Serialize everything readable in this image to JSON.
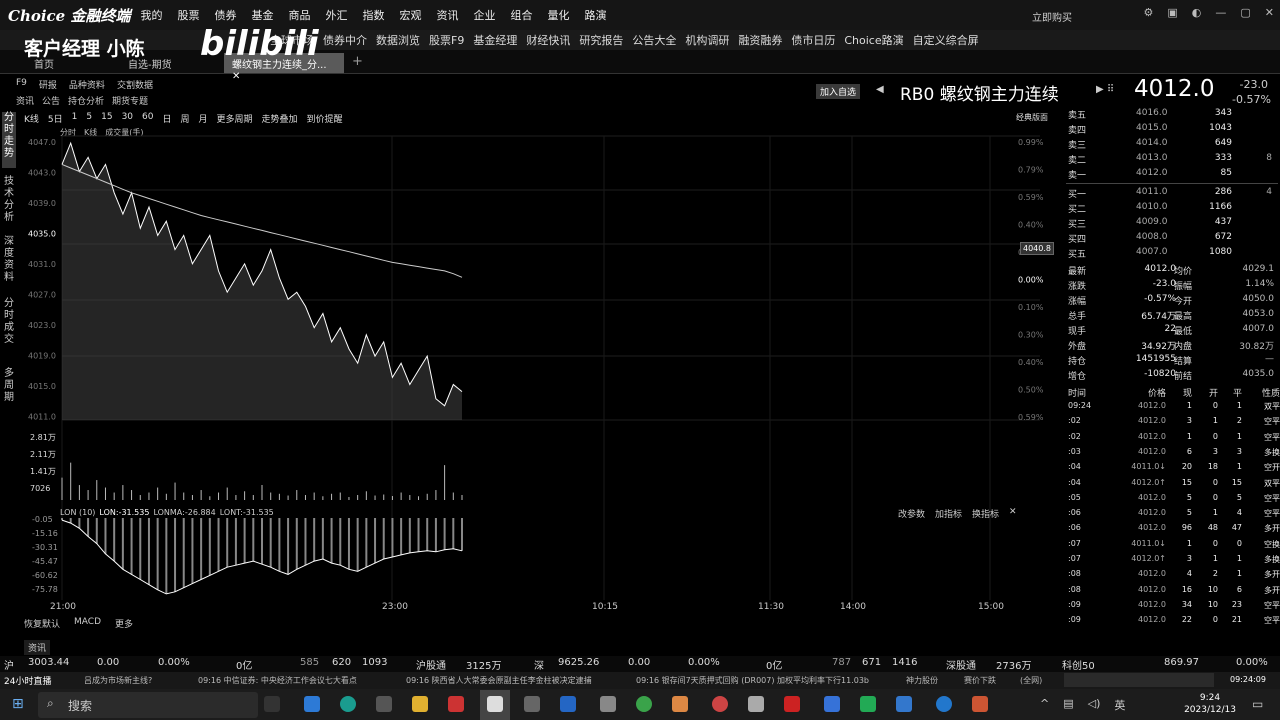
{
  "app": {
    "logo": "Choice 金融终端",
    "menu": [
      "我的",
      "股票",
      "债券",
      "基金",
      "商品",
      "外汇",
      "指数",
      "宏观",
      "资讯",
      "企业",
      "组合",
      "量化",
      "路演"
    ],
    "user_label": "立即购买"
  },
  "toolbar": [
    "全球市场",
    "债券中介",
    "数据浏览",
    "股票F9",
    "基金经理",
    "财经快讯",
    "研究报告",
    "公告大全",
    "机构调研",
    "融资融券",
    "债市日历",
    "Choice路演",
    "自定义综合屏"
  ],
  "tabs": [
    "首页",
    "自选-期货",
    "螺纹钢主力连续_分..."
  ],
  "watermark": {
    "text": "客户经理 小陈",
    "bili": "bilibili"
  },
  "left_nav": {
    "row1": [
      "F9",
      "研报",
      "品种资料",
      "交割数据"
    ],
    "row2": [
      "资讯",
      "公告",
      "持仓分析",
      "期货专题"
    ],
    "side": [
      "分时走势",
      "技术分析",
      "深度资料",
      "分时成交",
      "多周期"
    ]
  },
  "chart_controls": {
    "periods": [
      "K线",
      "5日",
      "1",
      "5",
      "15",
      "30",
      "60",
      "日",
      "周",
      "月",
      "更多周期",
      "走势叠加",
      "到价提醒"
    ],
    "sub": [
      "分时",
      "K线",
      "成交量(手)"
    ],
    "right_label": "经典版面",
    "current_tag": "4040.8"
  },
  "header": {
    "add_watch": "加入自选",
    "symbol": "RB0 螺纹钢主力连续",
    "price": "4012.0",
    "change": "-23.0",
    "change_pct": "-0.57%"
  },
  "order_book": {
    "asks": [
      {
        "label": "卖五",
        "price": "4016.0",
        "vol": "343",
        "extra": ""
      },
      {
        "label": "卖四",
        "price": "4015.0",
        "vol": "1043",
        "extra": ""
      },
      {
        "label": "卖三",
        "price": "4014.0",
        "vol": "649",
        "extra": ""
      },
      {
        "label": "卖二",
        "price": "4013.0",
        "vol": "333",
        "extra": "8"
      },
      {
        "label": "卖一",
        "price": "4012.0",
        "vol": "85",
        "extra": ""
      }
    ],
    "bids": [
      {
        "label": "买一",
        "price": "4011.0",
        "vol": "286",
        "extra": "4"
      },
      {
        "label": "买二",
        "price": "4010.0",
        "vol": "1166",
        "extra": ""
      },
      {
        "label": "买三",
        "price": "4009.0",
        "vol": "437",
        "extra": ""
      },
      {
        "label": "买四",
        "price": "4008.0",
        "vol": "672",
        "extra": ""
      },
      {
        "label": "买五",
        "price": "4007.0",
        "vol": "1080",
        "extra": ""
      }
    ]
  },
  "stats": [
    {
      "l1": "最新",
      "v1": "4012.0",
      "l2": "均价",
      "v2": "4029.1"
    },
    {
      "l1": "涨跌",
      "v1": "-23.0",
      "l2": "振幅",
      "v2": "1.14%"
    },
    {
      "l1": "涨幅",
      "v1": "-0.57%",
      "l2": "今开",
      "v2": "4050.0"
    },
    {
      "l1": "总手",
      "v1": "65.74万",
      "l2": "最高",
      "v2": "4053.0"
    },
    {
      "l1": "现手",
      "v1": "22",
      "l2": "最低",
      "v2": "4007.0"
    },
    {
      "l1": "外盘",
      "v1": "34.92万",
      "l2": "内盘",
      "v2": "30.82万"
    },
    {
      "l1": "持仓",
      "v1": "1451955",
      "l2": "结算",
      "v2": "—"
    },
    {
      "l1": "增仓",
      "v1": "-10820",
      "l2": "前结",
      "v2": "4035.0"
    }
  ],
  "trades_header": [
    "时间",
    "价格",
    "现",
    "开",
    "平",
    "性质"
  ],
  "trades": [
    [
      "09:24",
      "4012.0",
      "1",
      "0",
      "1",
      "双平"
    ],
    [
      ":02",
      "4012.0",
      "3",
      "1",
      "2",
      "空平"
    ],
    [
      ":02",
      "4012.0",
      "1",
      "0",
      "1",
      "空平"
    ],
    [
      ":03",
      "4012.0",
      "6",
      "3",
      "3",
      "多换"
    ],
    [
      ":04",
      "4011.0↓",
      "20",
      "18",
      "1",
      "空开"
    ],
    [
      ":04",
      "4012.0↑",
      "15",
      "0",
      "15",
      "双平"
    ],
    [
      ":05",
      "4012.0",
      "5",
      "0",
      "5",
      "空平"
    ],
    [
      ":06",
      "4012.0",
      "5",
      "1",
      "4",
      "空平"
    ],
    [
      ":06",
      "4012.0",
      "96",
      "48",
      "47",
      "多开"
    ],
    [
      ":07",
      "4011.0↓",
      "1",
      "0",
      "0",
      "空换"
    ],
    [
      ":07",
      "4012.0↑",
      "3",
      "1",
      "1",
      "多换"
    ],
    [
      ":08",
      "4012.0",
      "4",
      "2",
      "1",
      "多开"
    ],
    [
      ":08",
      "4012.0",
      "16",
      "10",
      "6",
      "多开"
    ],
    [
      ":09",
      "4012.0",
      "34",
      "10",
      "23",
      "空平"
    ],
    [
      ":09",
      "4012.0",
      "22",
      "0",
      "21",
      "空平"
    ]
  ],
  "chart_data": {
    "type": "line",
    "price_ticks": [
      "4047.0",
      "4043.0",
      "4039.0",
      "4035.0",
      "4031.0",
      "4027.0",
      "4023.0",
      "4019.0",
      "4015.0",
      "4011.0"
    ],
    "pct_ticks": [
      "0.99%",
      "0.79%",
      "0.59%",
      "0.40%",
      "0.20%",
      "0.00%",
      "0.10%",
      "0.30%",
      "0.40%",
      "0.50%",
      "0.59%"
    ],
    "ylim": [
      4009,
      4049
    ],
    "price": [
      4045,
      4048,
      4044,
      4046,
      4043,
      4045,
      4041,
      4038,
      4041,
      4036,
      4039,
      4035,
      4037,
      4033,
      4035,
      4031,
      4033,
      4035,
      4030,
      4027,
      4029,
      4031,
      4028,
      4030,
      4033,
      4029,
      4026,
      4027,
      4025,
      4022,
      4024,
      4020,
      4022,
      4019,
      4017,
      4021,
      4018,
      4020,
      4015,
      4017,
      4014,
      4016,
      4018,
      4012,
      4011,
      4014,
      4013
    ],
    "avg": [
      4045,
      4044.5,
      4044,
      4043.5,
      4043,
      4042.5,
      4042,
      4041.5,
      4041,
      4040.6,
      4040.2,
      4039.8,
      4039.4,
      4039,
      4038.6,
      4038.2,
      4037.8,
      4037.5,
      4037.2,
      4036.9,
      4036.6,
      4036.3,
      4036,
      4035.7,
      4035.4,
      4035.1,
      4034.8,
      4034.5,
      4034.2,
      4033.9,
      4033.6,
      4033.3,
      4033,
      4032.7,
      4032.4,
      4032.1,
      4031.8,
      4031.5,
      4031.2,
      4031,
      4030.8,
      4030.6,
      4030.4,
      4030.2,
      4030,
      4029.6,
      4029.1
    ],
    "vol_ticks": [
      "2.81万",
      "2.11万",
      "1.41万",
      "7026"
    ],
    "volume": [
      9000,
      15000,
      6000,
      4000,
      8000,
      5000,
      3000,
      6000,
      4000,
      2000,
      3000,
      5000,
      2500,
      7000,
      3000,
      2000,
      4000,
      1500,
      3000,
      5000,
      2000,
      3500,
      2000,
      6000,
      3000,
      2500,
      1800,
      4000,
      2000,
      3000,
      1500,
      2500,
      3000,
      1200,
      2000,
      3500,
      1800,
      2200,
      1600,
      3000,
      2000,
      1500,
      2500,
      4000,
      14000,
      3000,
      2000
    ],
    "indicator": {
      "name": "LON",
      "params": "LON (10)",
      "lon": "LON:-31.535",
      "lonma": "LONMA:-26.884",
      "lont": "LONT:-31.535"
    },
    "ind_ticks": [
      "-0.05",
      "-15.16",
      "-30.31",
      "-45.47",
      "-60.62",
      "-75.78"
    ],
    "ind": [
      -2,
      -5,
      -10,
      -18,
      -25,
      -35,
      -42,
      -50,
      -55,
      -60,
      -65,
      -70,
      -74,
      -72,
      -68,
      -64,
      -60,
      -56,
      -52,
      -48,
      -46,
      -44,
      -42,
      -45,
      -48,
      -52,
      -55,
      -50,
      -46,
      -42,
      -40,
      -44,
      -46,
      -50,
      -52,
      -48,
      -44,
      -40,
      -38,
      -36,
      -34,
      -33,
      -32,
      -33,
      -31,
      -30,
      -32
    ],
    "time_ticks": [
      "21:00",
      "23:00",
      "10:15",
      "11:30",
      "14:00",
      "15:00"
    ]
  },
  "chart_footer": [
    "恢复默认",
    "MACD",
    "更多"
  ],
  "indicator_buttons": [
    "改参数",
    "加指标",
    "换指标"
  ],
  "info_label": "资讯",
  "ticker": {
    "sh": "沪",
    "sh_val": "3003.44",
    "sh_chg": "0.00",
    "sh_pct": "0.00%",
    "sh_amt": "0亿",
    "sh_a": "585",
    "sh_b": "620",
    "sh_c": "1093",
    "hgt_label": "沪股通",
    "hgt": "3125万",
    "sz": "深",
    "sz_val": "9625.26",
    "sz_chg": "0.00",
    "sz_pct": "0.00%",
    "sz_amt": "0亿",
    "sz_a": "787",
    "sz_b": "671",
    "sz_c": "1416",
    "sgt_label": "深股通",
    "sgt": "2736万",
    "kc": "科创50",
    "kc_val": "869.97",
    "kc_pct": "0.00%"
  },
  "news": {
    "live": "24小时直播",
    "items": [
      "吕成为市场新主线?",
      "09:16 中信证券: 中央经济工作会议七大看点",
      "09:16 陕西省人大常委会原副主任李金柱被决定逮捕",
      "09:16 银存间7天质押式回购 (DR007) 加权平均利率下行11.03b",
      "神力股份",
      "赛价下跌",
      "(全网)"
    ],
    "time": "09:24:09"
  },
  "taskbar": {
    "search": "搜索",
    "time": "9:24",
    "date": "2023/12/13",
    "lang": "英"
  }
}
